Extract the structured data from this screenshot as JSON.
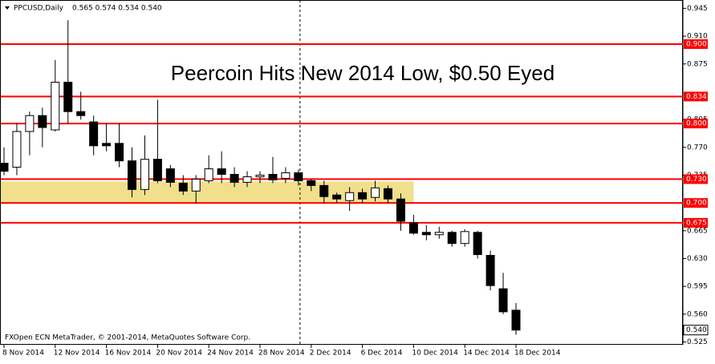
{
  "chart_data": {
    "type": "candlestick",
    "symbol": "PPCUSD,Daily",
    "header_values": "0.565 0.574 0.534 0.540",
    "annotation": "Peercoin Hits New 2014 Low, $0.50 Eyed",
    "footer": "FXOpen ECN MetaTrader, © 2001-2014, MetaQuotes Software Corp.",
    "categories": [
      "8 Nov 2014",
      null,
      null,
      null,
      "12 Nov 2014",
      null,
      null,
      null,
      "16 Nov 2014",
      null,
      null,
      null,
      "20 Nov 2014",
      null,
      null,
      null,
      "24 Nov 2014",
      null,
      null,
      null,
      "28 Nov 2014",
      null,
      null,
      null,
      "2 Dec 2014",
      null,
      null,
      null,
      "6 Dec 2014",
      null,
      null,
      null,
      "10 Dec 2014",
      null,
      null,
      null,
      "14 Dec 2014",
      null,
      null,
      null,
      "18 Dec 2014"
    ],
    "open": [
      0.75,
      0.745,
      0.79,
      0.81,
      0.792,
      0.852,
      0.815,
      0.802,
      0.775,
      0.775,
      0.753,
      0.717,
      0.755,
      0.743,
      0.725,
      0.715,
      0.728,
      0.743,
      0.736,
      0.726,
      0.733,
      0.736,
      0.731,
      0.738,
      0.728,
      0.722,
      0.71,
      0.703,
      0.713,
      0.707,
      0.718,
      0.705,
      0.675,
      0.663,
      0.66,
      0.663,
      0.649,
      0.663,
      0.634,
      0.592,
      0.565
    ],
    "high": [
      0.77,
      0.8,
      0.815,
      0.82,
      0.88,
      0.93,
      0.84,
      0.81,
      0.8,
      0.8,
      0.77,
      0.785,
      0.83,
      0.748,
      0.735,
      0.735,
      0.76,
      0.765,
      0.745,
      0.74,
      0.74,
      0.758,
      0.745,
      0.742,
      0.73,
      0.728,
      0.713,
      0.72,
      0.718,
      0.728,
      0.722,
      0.712,
      0.685,
      0.672,
      0.67,
      0.665,
      0.667,
      0.665,
      0.64,
      0.612,
      0.574
    ],
    "low": [
      0.735,
      0.735,
      0.76,
      0.77,
      0.79,
      0.8,
      0.805,
      0.76,
      0.765,
      0.745,
      0.707,
      0.71,
      0.725,
      0.72,
      0.71,
      0.7,
      0.725,
      0.725,
      0.72,
      0.72,
      0.725,
      0.725,
      0.725,
      0.722,
      0.715,
      0.7,
      0.7,
      0.69,
      0.7,
      0.702,
      0.7,
      0.665,
      0.66,
      0.653,
      0.655,
      0.645,
      0.645,
      0.63,
      0.59,
      0.56,
      0.534
    ],
    "close": [
      0.74,
      0.79,
      0.81,
      0.795,
      0.852,
      0.815,
      0.81,
      0.772,
      0.772,
      0.753,
      0.717,
      0.755,
      0.728,
      0.726,
      0.715,
      0.73,
      0.743,
      0.736,
      0.726,
      0.733,
      0.735,
      0.729,
      0.738,
      0.728,
      0.722,
      0.708,
      0.705,
      0.713,
      0.705,
      0.719,
      0.705,
      0.677,
      0.662,
      0.66,
      0.663,
      0.649,
      0.664,
      0.635,
      0.596,
      0.563,
      0.54
    ],
    "ylim": [
      0.5215,
      0.9555
    ],
    "yticks": [
      {
        "value": 0.945,
        "label": "0.945"
      },
      {
        "value": 0.91,
        "label": "0.910"
      },
      {
        "value": 0.875,
        "label": "0.875"
      },
      {
        "value": 0.805,
        "label": "0.805"
      },
      {
        "value": 0.77,
        "label": "0.770"
      },
      {
        "value": 0.735,
        "label": "0.735"
      },
      {
        "value": 0.665,
        "label": "0.665"
      },
      {
        "value": 0.63,
        "label": "0.630"
      },
      {
        "value": 0.595,
        "label": "0.595"
      },
      {
        "value": 0.56,
        "label": "0.560"
      },
      {
        "value": 0.525,
        "label": "0.525"
      }
    ],
    "levels": [
      {
        "value": 0.9,
        "label": "0.900"
      },
      {
        "value": 0.834,
        "label": "0.834"
      },
      {
        "value": 0.8,
        "label": "0.800"
      },
      {
        "value": 0.73,
        "label": "0.730"
      },
      {
        "value": 0.7,
        "label": "0.700"
      },
      {
        "value": 0.675,
        "label": "0.675"
      }
    ],
    "level_color": "#ff0000",
    "current_price": {
      "value": 0.54,
      "label": "0.540"
    },
    "zone": [
      0.7,
      0.727
    ],
    "zone_color": "#f0e08c"
  }
}
